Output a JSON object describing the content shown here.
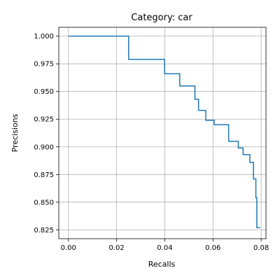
{
  "chart_data": {
    "type": "line",
    "title": "Category: car",
    "xlabel": "Recalls",
    "ylabel": "Precisions",
    "xlim": [
      -0.004,
      0.082
    ],
    "ylim": [
      0.817,
      1.008
    ],
    "grid": true,
    "step": "post",
    "color": "#1f77b4",
    "xticks": [
      0.0,
      0.02,
      0.04,
      0.06,
      0.08
    ],
    "xtick_labels": [
      "0.00",
      "0.02",
      "0.04",
      "0.06",
      "0.08"
    ],
    "yticks": [
      0.825,
      0.85,
      0.875,
      0.9,
      0.925,
      0.95,
      0.975,
      1.0
    ],
    "ytick_labels": [
      "0.825",
      "0.850",
      "0.875",
      "0.900",
      "0.925",
      "0.950",
      "0.975",
      "1.000"
    ],
    "series": [
      {
        "x": [
          0.0,
          0.025,
          0.025,
          0.0399,
          0.0399,
          0.0462,
          0.0462,
          0.0525,
          0.0525,
          0.054,
          0.054,
          0.057,
          0.057,
          0.0605,
          0.0605,
          0.0665,
          0.0665,
          0.0705,
          0.0705,
          0.0725,
          0.0725,
          0.0753,
          0.0753,
          0.0768,
          0.0768,
          0.0778,
          0.0778,
          0.0782,
          0.0782,
          0.0795
        ],
        "y": [
          1.0,
          1.0,
          0.979,
          0.979,
          0.966,
          0.966,
          0.955,
          0.955,
          0.943,
          0.943,
          0.933,
          0.933,
          0.924,
          0.924,
          0.92,
          0.92,
          0.905,
          0.905,
          0.899,
          0.899,
          0.893,
          0.893,
          0.886,
          0.886,
          0.871,
          0.871,
          0.854,
          0.854,
          0.827,
          0.827
        ]
      }
    ]
  }
}
